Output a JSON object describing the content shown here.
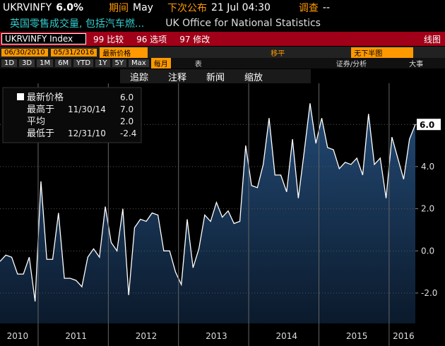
{
  "ui": {
    "ticker": "UKRVINFY",
    "last": "6.0%",
    "period_label": "期间",
    "period": "May",
    "next_label": "下次公布",
    "next": "21 Jul 04:30",
    "survey_label": "调查",
    "survey": "--",
    "description": "英国零售成交量, 包括汽车燃...",
    "source": "UK Office for National Statistics",
    "security": "UKRVINFY Index",
    "buttons": [
      "99 比较",
      "96 选项",
      "97 修改"
    ],
    "chart_kind": "线图",
    "start_date": "06/30/2010",
    "end_date": "05/31/2016",
    "field": "最新价格",
    "smooth": "移平",
    "lower": "无下半图",
    "ranges": [
      "1D",
      "3D",
      "1M",
      "6M",
      "YTD",
      "1Y",
      "5Y",
      "Max"
    ],
    "frequency": "每月",
    "table": "表",
    "analysis": "证券/分析",
    "events": "大事",
    "tools": [
      "追踪",
      "注释",
      "新闻",
      "缩放"
    ]
  },
  "chart_data": {
    "type": "area",
    "legend_stats": [
      {
        "name": "最新价格",
        "date": "",
        "value": "6.0"
      },
      {
        "name": "最高于",
        "date": "11/30/14",
        "value": "7.0"
      },
      {
        "name": "平均",
        "date": "",
        "value": "2.0"
      },
      {
        "name": "最低于",
        "date": "12/31/10",
        "value": "-2.4"
      }
    ],
    "categories": [
      null,
      null,
      null,
      "2010",
      null,
      null,
      null,
      null,
      null,
      null,
      null,
      null,
      null,
      "2011",
      null,
      null,
      null,
      null,
      null,
      null,
      null,
      null,
      null,
      null,
      null,
      "2012",
      null,
      null,
      null,
      null,
      null,
      null,
      null,
      null,
      null,
      null,
      null,
      "2013",
      null,
      null,
      null,
      null,
      null,
      null,
      null,
      null,
      null,
      null,
      null,
      "2014",
      null,
      null,
      null,
      null,
      null,
      null,
      null,
      null,
      null,
      null,
      null,
      "2015",
      null,
      null,
      null,
      null,
      null,
      null,
      null,
      "2016",
      null,
      null
    ],
    "values": [
      -0.5,
      -0.2,
      -0.3,
      -1.1,
      -1.1,
      -0.3,
      -2.4,
      3.3,
      -0.4,
      -0.4,
      1.8,
      -1.3,
      -1.3,
      -1.4,
      -1.7,
      -0.3,
      0.1,
      -0.3,
      2.1,
      0.4,
      0.0,
      2.0,
      -2.1,
      1.1,
      1.5,
      1.4,
      1.8,
      1.7,
      0.0,
      0.0,
      -1.0,
      -1.6,
      1.5,
      -0.8,
      0.1,
      1.7,
      1.4,
      2.3,
      1.6,
      1.9,
      1.3,
      1.4,
      5.0,
      3.1,
      3.0,
      4.1,
      6.3,
      3.6,
      3.6,
      2.8,
      5.3,
      2.5,
      4.7,
      7.0,
      5.1,
      6.3,
      4.9,
      4.8,
      3.9,
      4.2,
      4.1,
      4.4,
      3.6,
      6.5,
      4.1,
      4.4,
      2.5,
      5.4,
      4.4,
      3.4,
      5.3,
      6.0
    ],
    "color": "#ffffff",
    "fill": "#1c3d63",
    "ylim": [
      -3.44,
      7.95
    ],
    "yticks": [
      {
        "value": -2,
        "label": "-2.0"
      },
      {
        "value": 0,
        "label": "0.0"
      },
      {
        "value": 2,
        "label": "2.0"
      },
      {
        "value": 4,
        "label": "4.0"
      },
      {
        "value": 6,
        "label": "6.0"
      }
    ],
    "grid": true
  }
}
